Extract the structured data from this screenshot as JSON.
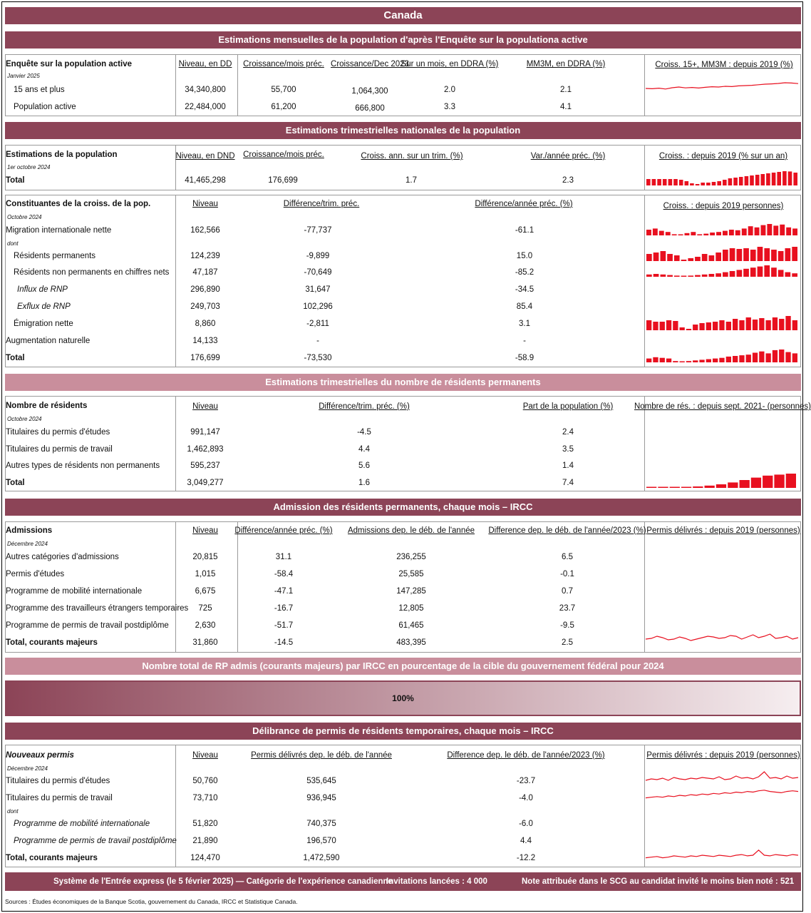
{
  "title": "Canada",
  "colors": {
    "band": "#8c4457",
    "band_light": "#c98e9c",
    "spark": "#e8101f"
  },
  "lfs": {
    "header": "Estimations mensuelles de la population d'après l'Enquête sur la populationa active",
    "label": "Enquête sur la population active",
    "date": "Janvier 2025",
    "cols": [
      "Niveau, en DD",
      "Croissance/mois préc.",
      "Croissance/Dec 2023",
      "Sur un mois, en DDRA (%)",
      "MM3M, en DDRA (%)",
      "Croiss. 15+, MM3M : depuis 2019 (%)"
    ],
    "rows": [
      {
        "label": "15 ans et plus",
        "v": [
          "34,340,800",
          "55,700",
          "1,064,300",
          "2.0",
          "2.1"
        ]
      },
      {
        "label": "Population active",
        "v": [
          "22,484,000",
          "61,200",
          "666,800",
          "3.3",
          "4.1"
        ]
      }
    ]
  },
  "qpop": {
    "header": "Estimations trimestrielles nationales de la population",
    "label": "Estimations de la population",
    "date": "1er octobre 2024",
    "cols": [
      "Niveau, en DND",
      "Croissance/mois préc.",
      "Croiss. ann. sur un trim. (%)",
      "Var./année préc. (%)",
      "Croiss. : depuis 2019 (% sur un an)"
    ],
    "total": {
      "label": "Total",
      "v": [
        "41,465,298",
        "176,699",
        "1.7",
        "2.3"
      ]
    }
  },
  "comp": {
    "label": "Constituantes de la croiss. de la pop.",
    "date": "Octobre 2024",
    "cols": [
      "Niveau",
      "Différence/trim. préc.",
      "Différence/année préc. (%)",
      "Croiss. : depuis 2019 personnes)"
    ],
    "dont": "dont",
    "rows": [
      {
        "label": "Migration internationale nette",
        "v": [
          "162,566",
          "-77,737",
          "-61.1"
        ]
      },
      {
        "label": "Résidents permanents",
        "v": [
          "124,239",
          "-9,899",
          "15.0"
        ]
      },
      {
        "label": "Résidents non permanents en chiffres nets",
        "v": [
          "47,187",
          "-70,649",
          "-85.2"
        ]
      },
      {
        "label": "Influx de RNP",
        "v": [
          "296,890",
          "31,647",
          "-34.5"
        ]
      },
      {
        "label": "Exflux de RNP",
        "v": [
          "249,703",
          "102,296",
          "85.4"
        ]
      },
      {
        "label": "Émigration nette",
        "v": [
          "8,860",
          "-2,811",
          "3.1"
        ]
      },
      {
        "label": "Augmentation naturelle",
        "v": [
          "14,133",
          "-",
          "-"
        ]
      },
      {
        "label": "Total",
        "v": [
          "176,699",
          "-73,530",
          "-58.9"
        ]
      }
    ]
  },
  "npr": {
    "header": "Estimations trimestrielles du nombre de résidents permanents",
    "label": "Nombre de résidents",
    "date": "Octobre 2024",
    "cols": [
      "Niveau",
      "Différence/trim. préc. (%)",
      "Part de la population (%)",
      "Nombre de rés. : depuis sept. 2021- (personnes)"
    ],
    "rows": [
      {
        "label": "Titulaires du permis d'études",
        "v": [
          "991,147",
          "-4.5",
          "2.4"
        ]
      },
      {
        "label": "Titulaires du permis de travail",
        "v": [
          "1,462,893",
          "4.4",
          "3.5"
        ]
      },
      {
        "label": "Autres types de résidents non permanents",
        "v": [
          "595,237",
          "5.6",
          "1.4"
        ]
      },
      {
        "label": "Total",
        "v": [
          "3,049,277",
          "1.6",
          "7.4"
        ]
      }
    ]
  },
  "adm": {
    "header": "Admission des résidents permanents, chaque mois – IRCC",
    "label": "Admissions",
    "date": "Décembre 2024",
    "cols": [
      "Niveau",
      "Différence/année préc. (%)",
      "Admissions dep. le déb. de l'année",
      "Difference dep. le déb. de l'année/2023 (%)",
      "Permis délivrés : depuis 2019 (personnes)"
    ],
    "rows": [
      {
        "label": "Autres catégories d'admissions",
        "v": [
          "20,815",
          "31.1",
          "236,255",
          "6.5"
        ]
      },
      {
        "label": "Permis d'études",
        "v": [
          "1,015",
          "-58.4",
          "25,585",
          "-0.1"
        ]
      },
      {
        "label": "Programme de mobilité internationale",
        "v": [
          "6,675",
          "-47.1",
          "147,285",
          "0.7"
        ]
      },
      {
        "label": "Programme des travailleurs étrangers temporaires",
        "v": [
          "725",
          "-16.7",
          "12,805",
          "23.7"
        ]
      },
      {
        "label": "Programme de permis de travail postdiplôme",
        "v": [
          "2,630",
          "-51.7",
          "61,465",
          "-9.5"
        ]
      },
      {
        "label": "Total, courants majeurs",
        "v": [
          "31,860",
          "-14.5",
          "483,395",
          "2.5"
        ]
      }
    ]
  },
  "target": {
    "header": "Nombre total de RP admis (courants majeurs) par IRCC en pourcentage de la cible du gouvernement fédéral pour 2024",
    "value": "100%",
    "fraction": 1.0
  },
  "tmp": {
    "header": "Délibrance de permis de résidents temporaires, chaque mois – IRCC",
    "label": "Nouveaux permis",
    "date": "Décembre 2024",
    "cols": [
      "Niveau",
      "Permis délivrés dep. le déb. de l'année",
      "Difference dep. le déb. de l'année/2023 (%)",
      "Permis délivrés : depuis 2019 (personnes)"
    ],
    "dont": "dont",
    "rows": [
      {
        "label": "Titulaires du permis d'études",
        "v": [
          "50,760",
          "535,645",
          "-23.7"
        ]
      },
      {
        "label": "Titulaires du permis de travail",
        "v": [
          "73,710",
          "936,945",
          "-4.0"
        ]
      },
      {
        "label": "Programme de mobilité internationale",
        "v": [
          "51,820",
          "740,375",
          "-6.0"
        ]
      },
      {
        "label": "Programme de permis de travail postdiplôme",
        "v": [
          "21,890",
          "196,570",
          "4.4"
        ]
      },
      {
        "label": "Total, courants majeurs",
        "v": [
          "124,470",
          "1,472,590",
          "-12.2"
        ]
      }
    ]
  },
  "footer": {
    "ee": "Système de l'Entrée express (le 5 février 2025) — Catégorie de l'expérience canadienne",
    "inv": "Invitations lancées : 4 000",
    "score": "Note attribuée dans le SCG au candidat invité le moins bien noté : 521"
  },
  "sources": "Sources : Études économiques de la Banque Scotia, gouvernement du Canada, IRCC et Statistique Canada.",
  "sparks": {
    "lfs": [
      0.4,
      0.38,
      0.42,
      0.36,
      0.45,
      0.5,
      0.44,
      0.47,
      0.43,
      0.48,
      0.52,
      0.5,
      0.55,
      0.53,
      0.58,
      0.6,
      0.62,
      0.66,
      0.7,
      0.72,
      0.75,
      0.8,
      0.78,
      0.74
    ],
    "qpop": [
      0.45,
      0.45,
      0.45,
      0.45,
      0.45,
      0.45,
      0.4,
      0.3,
      0.15,
      0.1,
      0.2,
      0.2,
      0.25,
      0.3,
      0.4,
      0.5,
      0.55,
      0.6,
      0.65,
      0.7,
      0.75,
      0.8,
      0.85,
      0.9,
      0.95,
      1.0,
      0.98,
      0.9
    ],
    "mig": [
      0.5,
      0.6,
      0.4,
      0.3,
      0.1,
      0.05,
      0.2,
      0.3,
      0.1,
      0.15,
      0.25,
      0.3,
      0.4,
      0.5,
      0.45,
      0.6,
      0.8,
      0.7,
      0.9,
      1.0,
      0.85,
      0.95,
      0.7,
      0.6
    ],
    "rp": [
      0.5,
      0.6,
      0.7,
      0.5,
      0.4,
      0.1,
      0.2,
      0.3,
      0.5,
      0.4,
      0.6,
      0.8,
      0.9,
      0.85,
      0.9,
      0.8,
      1.0,
      0.9,
      0.8,
      0.7,
      0.9,
      1.0
    ],
    "rnp": [
      0.2,
      0.25,
      0.2,
      0.15,
      0.1,
      0.05,
      0.1,
      0.15,
      0.2,
      0.25,
      0.3,
      0.4,
      0.5,
      0.6,
      0.7,
      0.8,
      0.9,
      1.0,
      0.8,
      0.6,
      0.4,
      0.3
    ],
    "emig": [
      0.7,
      0.6,
      0.6,
      0.7,
      0.65,
      0.2,
      0.1,
      0.4,
      0.5,
      0.55,
      0.6,
      0.7,
      0.6,
      0.8,
      0.7,
      0.9,
      0.75,
      0.85,
      0.7,
      0.9,
      0.8,
      1.0,
      0.7
    ],
    "tot": [
      0.3,
      0.4,
      0.35,
      0.3,
      0.1,
      0.05,
      0.1,
      0.15,
      0.2,
      0.25,
      0.3,
      0.35,
      0.45,
      0.5,
      0.55,
      0.6,
      0.75,
      0.85,
      0.7,
      0.95,
      1.0,
      0.8,
      0.7
    ],
    "nres": [
      0.02,
      0.03,
      0.04,
      0.06,
      0.1,
      0.16,
      0.25,
      0.38,
      0.55,
      0.72,
      0.86,
      0.93,
      1.0
    ],
    "adm": [
      0.5,
      0.55,
      0.7,
      0.6,
      0.45,
      0.5,
      0.65,
      0.55,
      0.4,
      0.5,
      0.6,
      0.7,
      0.65,
      0.55,
      0.6,
      0.75,
      0.7,
      0.5,
      0.65,
      0.8,
      0.6,
      0.7,
      0.85,
      0.55,
      0.6,
      0.7,
      0.5,
      0.6
    ],
    "etu": [
      0.4,
      0.5,
      0.45,
      0.55,
      0.4,
      0.6,
      0.5,
      0.45,
      0.55,
      0.5,
      0.6,
      0.55,
      0.5,
      0.65,
      0.45,
      0.5,
      0.7,
      0.55,
      0.6,
      0.5,
      0.65,
      1.0,
      0.55,
      0.6,
      0.5,
      0.7,
      0.55,
      0.6
    ],
    "trav": [
      0.3,
      0.35,
      0.4,
      0.35,
      0.45,
      0.4,
      0.5,
      0.45,
      0.55,
      0.5,
      0.6,
      0.55,
      0.65,
      0.6,
      0.7,
      0.65,
      0.75,
      0.7,
      0.8,
      0.75,
      0.85,
      0.9,
      0.8,
      0.75,
      0.7,
      0.8,
      0.85,
      0.8
    ],
    "ttot": [
      0.3,
      0.35,
      0.4,
      0.3,
      0.35,
      0.45,
      0.4,
      0.35,
      0.45,
      0.4,
      0.5,
      0.45,
      0.4,
      0.5,
      0.45,
      0.4,
      0.5,
      0.55,
      0.45,
      0.5,
      0.9,
      0.5,
      0.45,
      0.55,
      0.5,
      0.45,
      0.55,
      0.5
    ]
  }
}
